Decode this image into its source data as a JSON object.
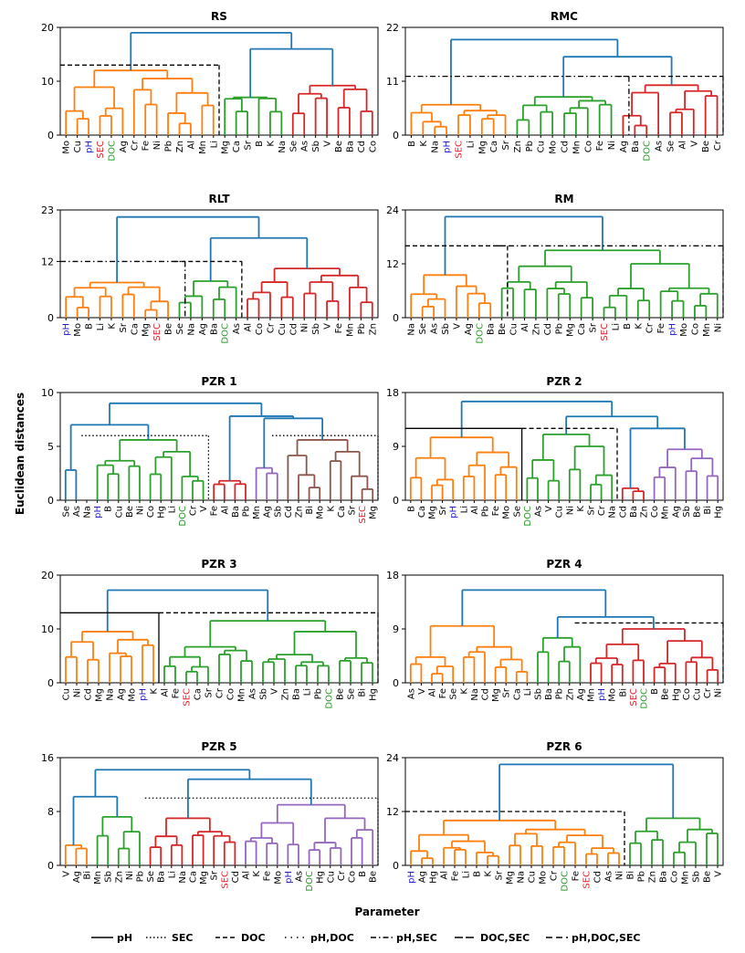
{
  "chart_data": {
    "type": "dendrogram",
    "ylabel": "Euclidean distances",
    "xlabel": "Parameter",
    "legend": {
      "placement": "bottom",
      "items": [
        {
          "label": "pH",
          "dash": "solid"
        },
        {
          "label": "SEC",
          "dash": "dotted"
        },
        {
          "label": "DOC",
          "dash": "dashed"
        },
        {
          "label": "pH,DOC",
          "dash": "dotted-wide"
        },
        {
          "label": "pH,SEC",
          "dash": "dashdot"
        },
        {
          "label": "DOC,SEC",
          "dash": "longdash"
        },
        {
          "label": "pH,DOC,SEC",
          "dash": "longdash2"
        }
      ]
    },
    "label_colors": {
      "pH": "#1f1fd0",
      "SEC": "#e8202a",
      "DOC": "#2a9a2a",
      "default": "#000000"
    },
    "cluster_colors": {
      "blue": "#1f77b4",
      "orange": "#ff7f0e",
      "green": "#2ca02c",
      "red": "#d62728",
      "purple": "#9467bd",
      "brown": "#8c564b",
      "black": "#000000"
    },
    "panels": [
      {
        "title": "RS",
        "ymax": 20,
        "yticks": [
          0,
          10,
          20
        ],
        "leaves": [
          "Mo",
          "Cu",
          "pH",
          "SEC",
          "DOC",
          "Ag",
          "Cr",
          "Fe",
          "Ni",
          "Pb",
          "Zn",
          "Al",
          "Mn",
          "Li",
          "Mg",
          "Ca",
          "Sr",
          "B",
          "K",
          "Na",
          "Se",
          "As",
          "Sb",
          "V",
          "Be",
          "Ba",
          "Cd",
          "Co"
        ],
        "clusters": [
          {
            "color": "orange",
            "first": 0,
            "last": 13,
            "link": 10.5,
            "top": 12
          },
          {
            "color": "green",
            "first": 14,
            "last": 19,
            "link": 6.8,
            "top": 7
          },
          {
            "color": "red",
            "first": 20,
            "last": 27,
            "link": 8.5,
            "top": 9.2
          }
        ],
        "upper": [
          {
            "color": "blue",
            "a": 1,
            "b": 2,
            "h": 16
          },
          {
            "color": "blue",
            "a": 0,
            "b": "n1",
            "h": 19
          }
        ],
        "threshold": {
          "style": "dashed",
          "value": 13,
          "from": 0,
          "to": 13
        }
      },
      {
        "title": "RMC",
        "ymax": 22,
        "yticks": [
          0,
          11,
          22
        ],
        "leaves": [
          "B",
          "K",
          "Na",
          "pH",
          "SEC",
          "Li",
          "Mg",
          "Ca",
          "Sr",
          "Zn",
          "Pb",
          "Cu",
          "Mo",
          "Cd",
          "Mn",
          "Co",
          "Fe",
          "Ni",
          "Ag",
          "Ba",
          "DOC",
          "As",
          "Se",
          "Al",
          "V",
          "Be",
          "Cr"
        ],
        "clusters": [
          {
            "color": "orange",
            "first": 0,
            "last": 8,
            "link": 5,
            "top": 6.2
          },
          {
            "color": "green",
            "first": 9,
            "last": 17,
            "link": 7,
            "top": 7.8
          },
          {
            "color": "red",
            "first": 18,
            "last": 26,
            "link": 9,
            "top": 10.2
          }
        ],
        "upper": [
          {
            "color": "blue",
            "a": 1,
            "b": 2,
            "h": 16
          },
          {
            "color": "blue",
            "a": 0,
            "b": "n1",
            "h": 19.5
          }
        ],
        "threshold": {
          "style": "dashdot",
          "value": 12,
          "from": 0,
          "to": 18,
          "second": {
            "style": "dashed",
            "value": 12,
            "from": 18,
            "to": 26
          }
        }
      },
      {
        "title": "RLT",
        "ymax": 23,
        "yticks": [
          0,
          12,
          23
        ],
        "leaves": [
          "pH",
          "Mo",
          "B",
          "Li",
          "K",
          "Sr",
          "Ca",
          "Mg",
          "SEC",
          "Be",
          "Se",
          "Na",
          "Ag",
          "Ba",
          "DOC",
          "As",
          "Al",
          "Co",
          "Cr",
          "Cu",
          "Cd",
          "Ni",
          "Sb",
          "V",
          "Fe",
          "Mn",
          "Pb",
          "Zn"
        ],
        "clusters": [
          {
            "color": "orange",
            "first": 0,
            "last": 9,
            "link": 6.5,
            "top": 7.5
          },
          {
            "color": "green",
            "first": 10,
            "last": 15,
            "link": 6.5,
            "top": 7.8
          },
          {
            "color": "red",
            "first": 16,
            "last": 27,
            "link": 9,
            "top": 10.5
          }
        ],
        "upper": [
          {
            "color": "blue",
            "a": 1,
            "b": 2,
            "h": 17
          },
          {
            "color": "blue",
            "a": 0,
            "b": "n1",
            "h": 21.5
          }
        ],
        "threshold": {
          "style": "dashdot",
          "value": 12,
          "from": 0,
          "to": 10,
          "second": {
            "style": "dashed",
            "value": 12,
            "from": 10,
            "to": 15
          }
        }
      },
      {
        "title": "RM",
        "ymax": 24,
        "yticks": [
          0,
          12,
          24
        ],
        "leaves": [
          "Na",
          "Se",
          "As",
          "Sb",
          "V",
          "Ag",
          "DOC",
          "Ba",
          "Be",
          "Cu",
          "Al",
          "Zn",
          "Cd",
          "Pb",
          "Mg",
          "Ca",
          "Sr",
          "SEC",
          "Li",
          "B",
          "K",
          "Cr",
          "Fe",
          "pH",
          "Mo",
          "Co",
          "Mn",
          "Ni"
        ],
        "clusters": [
          {
            "color": "orange",
            "first": 0,
            "last": 7,
            "link": 7,
            "top": 9.5
          },
          {
            "color": "green",
            "first": 8,
            "last": 27,
            "link": 12,
            "top": 15
          }
        ],
        "upper": [
          {
            "color": "blue",
            "a": 0,
            "b": 1,
            "h": 22.5
          }
        ],
        "threshold": {
          "style": "dashed",
          "value": 16,
          "from": 0,
          "to": 8,
          "second": {
            "style": "dashdot",
            "value": 16,
            "from": 8,
            "to": 27
          }
        }
      },
      {
        "title": "PZR 1",
        "ymax": 10,
        "yticks": [
          0,
          5,
          10
        ],
        "leaves": [
          "Se",
          "As",
          "Na",
          "pH",
          "B",
          "Cu",
          "Be",
          "Ni",
          "Co",
          "Hg",
          "Li",
          "DOC",
          "Cr",
          "V",
          "Fe",
          "Al",
          "Ba",
          "Pb",
          "Mn",
          "Ag",
          "Sb",
          "Cd",
          "Zn",
          "Bi",
          "Mo",
          "K",
          "Ca",
          "Sr",
          "SEC",
          "Mg"
        ],
        "clusters": [
          {
            "color": "blue",
            "first": 0,
            "last": 1,
            "link": 2.5,
            "top": 2.8
          },
          {
            "color": "green",
            "first": 3,
            "last": 13,
            "link": 4.5,
            "top": 5.6
          },
          {
            "color": "red",
            "first": 14,
            "last": 17,
            "link": 1.5,
            "top": 1.8
          },
          {
            "color": "purple",
            "first": 18,
            "last": 20,
            "link": 2.5,
            "top": 3
          },
          {
            "color": "brown",
            "first": 21,
            "last": 29,
            "link": 4.5,
            "top": 5.6
          }
        ],
        "upper": [
          {
            "color": "blue",
            "a": 0,
            "b": 1,
            "h": 7
          },
          {
            "color": "blue",
            "a": 3,
            "b": 4,
            "h": 7.6
          },
          {
            "color": "blue",
            "a": 2,
            "b": "n2",
            "h": 7.8
          },
          {
            "color": "blue",
            "a": "n1",
            "b": "n3",
            "h": 9
          }
        ],
        "threshold": {
          "style": "dotted",
          "value": 6,
          "from": 2,
          "to": 13,
          "second": {
            "style": "dotted",
            "value": 6,
            "from": 20,
            "to": 29
          }
        }
      },
      {
        "title": "PZR 2",
        "ymax": 18,
        "yticks": [
          0,
          9,
          18
        ],
        "leaves": [
          "B",
          "Ca",
          "Mg",
          "Sr",
          "pH",
          "Li",
          "Al",
          "Pb",
          "Fe",
          "Mo",
          "Se",
          "DOC",
          "As",
          "V",
          "Cu",
          "Ni",
          "K",
          "Sr",
          "Cr",
          "Na",
          "Cd",
          "Ba",
          "Zn",
          "Co",
          "Mn",
          "Ag",
          "Sb",
          "Be",
          "Bi",
          "Hg"
        ],
        "clusters": [
          {
            "color": "orange",
            "first": 0,
            "last": 10,
            "link": 8,
            "top": 10.5
          },
          {
            "color": "green",
            "first": 11,
            "last": 19,
            "link": 9,
            "top": 11
          },
          {
            "color": "red",
            "first": 20,
            "last": 22,
            "link": 1.5,
            "top": 2
          },
          {
            "color": "purple",
            "first": 23,
            "last": 29,
            "link": 7,
            "top": 8.5
          }
        ],
        "upper": [
          {
            "color": "blue",
            "a": 2,
            "b": 3,
            "h": 12
          },
          {
            "color": "blue",
            "a": 1,
            "b": "n1",
            "h": 14
          },
          {
            "color": "blue",
            "a": 0,
            "b": "n2",
            "h": 16.5
          }
        ],
        "threshold": {
          "style": "solid",
          "value": 12,
          "from": 0,
          "to": 10,
          "second": {
            "style": "dashed",
            "value": 12,
            "from": 11,
            "to": 19
          }
        }
      },
      {
        "title": "PZR 3",
        "ymax": 20,
        "yticks": [
          0,
          10,
          20
        ],
        "leaves": [
          "Cu",
          "Ni",
          "Cd",
          "Mg",
          "Na",
          "Ag",
          "Mo",
          "pH",
          "K",
          "Al",
          "Fe",
          "SEC",
          "Ca",
          "Sr",
          "Cr",
          "Co",
          "Mn",
          "As",
          "Sb",
          "V",
          "Zn",
          "Ba",
          "Li",
          "Pb",
          "DOC",
          "Be",
          "Se",
          "Bi",
          "Hg"
        ],
        "clusters": [
          {
            "color": "orange",
            "first": 0,
            "last": 8,
            "link": 8,
            "top": 9.5
          },
          {
            "color": "green",
            "first": 9,
            "last": 28,
            "link": 9.5,
            "top": 11.5
          }
        ],
        "upper": [
          {
            "color": "blue",
            "a": 0,
            "b": 1,
            "h": 17.2
          }
        ],
        "threshold": {
          "style": "solid",
          "value": 13,
          "from": 0,
          "to": 8,
          "second": {
            "style": "dashed",
            "value": 13,
            "from": 9,
            "to": 28
          }
        }
      },
      {
        "title": "PZR 4",
        "ymax": 18,
        "yticks": [
          0,
          9,
          18
        ],
        "leaves": [
          "As",
          "V",
          "Al",
          "Fe",
          "Se",
          "K",
          "Na",
          "Cd",
          "Mg",
          "Sr",
          "Ca",
          "Li",
          "Sb",
          "Ba",
          "Pb",
          "Zn",
          "Ag",
          "Mn",
          "pH",
          "Mo",
          "Bi",
          "SEC",
          "DOC",
          "B",
          "Be",
          "Hg",
          "Co",
          "Cu",
          "Cr",
          "Ni"
        ],
        "clusters": [
          {
            "color": "orange",
            "first": 0,
            "last": 11,
            "link": 6,
            "top": 9.5
          },
          {
            "color": "green",
            "first": 12,
            "last": 16,
            "link": 6,
            "top": 7.5
          },
          {
            "color": "red",
            "first": 17,
            "last": 29,
            "link": 7,
            "top": 9
          }
        ],
        "upper": [
          {
            "color": "blue",
            "a": 1,
            "b": 2,
            "h": 11
          },
          {
            "color": "blue",
            "a": 0,
            "b": "n1",
            "h": 15.5
          }
        ],
        "threshold": {
          "style": "dashed",
          "value": 10,
          "from": 16,
          "to": 29
        }
      },
      {
        "title": "PZR 5",
        "ymax": 16,
        "yticks": [
          0,
          8,
          16
        ],
        "leaves": [
          "V",
          "Ag",
          "Bi",
          "Mn",
          "Sb",
          "Zn",
          "Ni",
          "Pb",
          "Se",
          "Ba",
          "Li",
          "Na",
          "Ca",
          "Mg",
          "Sr",
          "SEC",
          "Cd",
          "Al",
          "K",
          "Fe",
          "Mo",
          "pH",
          "As",
          "DOC",
          "Hg",
          "Cu",
          "Cr",
          "Co",
          "B",
          "Be"
        ],
        "clusters": [
          {
            "color": "orange",
            "first": 0,
            "last": 2,
            "link": 2.5,
            "top": 3
          },
          {
            "color": "green",
            "first": 3,
            "last": 7,
            "link": 5,
            "top": 7.2
          },
          {
            "color": "red",
            "first": 8,
            "last": 16,
            "link": 5,
            "top": 7
          },
          {
            "color": "purple",
            "first": 17,
            "last": 29,
            "link": 7,
            "top": 9
          }
        ],
        "upper": [
          {
            "color": "blue",
            "a": 0,
            "b": 1,
            "h": 10.2
          },
          {
            "color": "blue",
            "a": 2,
            "b": 3,
            "h": 12.8
          },
          {
            "color": "blue",
            "a": "n1",
            "b": "n2",
            "h": 14.2
          }
        ],
        "threshold": {
          "style": "dotted",
          "value": 10,
          "from": 8,
          "to": 29
        }
      },
      {
        "title": "PZR 6",
        "ymax": 24,
        "yticks": [
          0,
          12,
          24
        ],
        "leaves": [
          "pH",
          "Ag",
          "Hg",
          "Al",
          "Fe",
          "Li",
          "B",
          "K",
          "Sr",
          "Mg",
          "Na",
          "Cu",
          "Mo",
          "Cr",
          "DOC",
          "Fe",
          "SEC",
          "Cd",
          "As",
          "Ni",
          "Bi",
          "Pb",
          "Zn",
          "Ba",
          "Co",
          "Mn",
          "Sb",
          "Be",
          "V"
        ],
        "clusters": [
          {
            "color": "orange",
            "first": 0,
            "last": 19,
            "link": 8,
            "top": 10
          },
          {
            "color": "green",
            "first": 20,
            "last": 28,
            "link": 8,
            "top": 10.5
          }
        ],
        "upper": [
          {
            "color": "blue",
            "a": 0,
            "b": 1,
            "h": 22.5
          }
        ],
        "threshold": {
          "style": "dashed",
          "value": 12,
          "from": 0,
          "to": 19
        }
      }
    ]
  }
}
